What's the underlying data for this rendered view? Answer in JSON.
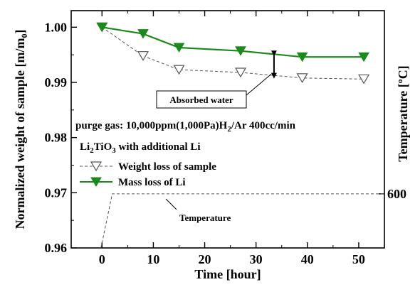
{
  "chart_data": {
    "type": "line",
    "xlabel": "Time [hour]",
    "ylabel": "Normalized weight of sample [m/m",
    "ylabel_sub": "0",
    "ylabel_close": "]",
    "y2label": "Temperature [ºC]",
    "xlim": [
      -6,
      55
    ],
    "ylim": [
      0.96,
      1.003
    ],
    "x_ticks": [
      0,
      10,
      20,
      30,
      40,
      50
    ],
    "x_tick_labels": [
      "0",
      "10",
      "20",
      "30",
      "40",
      "50"
    ],
    "y_ticks": [
      0.96,
      0.97,
      0.98,
      0.99,
      1.0
    ],
    "y_tick_labels": [
      "0.96",
      "0.97",
      "0.98",
      "0.99",
      "1.00"
    ],
    "y2_tick_label": "600",
    "grid": false,
    "series": [
      {
        "name": "Weight loss of sample",
        "marker": "open-triangle-down",
        "line_style": "dashed",
        "color": "#555555",
        "x": [
          0,
          8,
          15,
          27,
          39,
          51
        ],
        "y": [
          1.0,
          0.9948,
          0.9923,
          0.9918,
          0.9908,
          0.9906
        ]
      },
      {
        "name": "Mass loss of Li",
        "marker": "filled-triangle-down",
        "line_style": "solid",
        "color": "#1a8a1a",
        "x": [
          0,
          8,
          15,
          27,
          39,
          51
        ],
        "y": [
          1.0,
          0.9988,
          0.9963,
          0.9957,
          0.9946,
          0.9946
        ]
      },
      {
        "name": "Temperature",
        "line_style": "dashed",
        "color": "#555555",
        "x": [
          -0.2,
          2,
          55
        ],
        "y": [
          0.96,
          0.9698,
          0.9698
        ]
      }
    ],
    "annotations": {
      "absorbed_water": "Absorbed water",
      "purge_gas_a": "purge gas: 10,000ppm(1,000Pa)H",
      "purge_gas_sub": "2",
      "purge_gas_b": "/Ar  400cc/min",
      "material_a": "Li",
      "material_sub1": "2",
      "material_b": "TiO",
      "material_sub2": "3",
      "material_c": " with additional Li",
      "temperature_label": "Temperature"
    },
    "legend_placement": "center-left"
  }
}
